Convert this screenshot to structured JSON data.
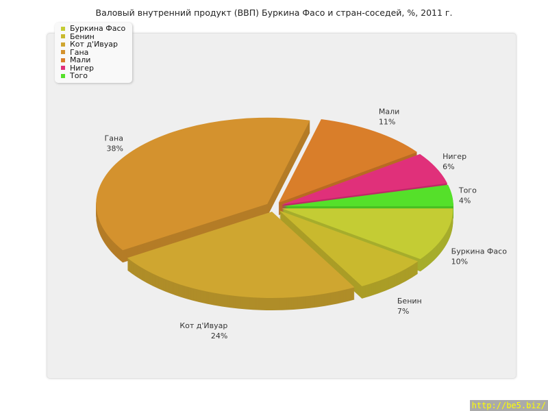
{
  "chart_data": {
    "type": "pie",
    "title": "Валовый внутренний продукт (ВВП) Буркина Фасо и стран-соседей, %, 2011 г.",
    "legend_position": "top-left",
    "slices": [
      {
        "label": "Буркина Фасо",
        "value": 10,
        "color": "#c4cc34"
      },
      {
        "label": "Бенин",
        "value": 7,
        "color": "#c9b92e"
      },
      {
        "label": "Кот д'Ивуар",
        "value": 24,
        "color": "#cfa630"
      },
      {
        "label": "Гана",
        "value": 38,
        "color": "#d4922e"
      },
      {
        "label": "Мали",
        "value": 11,
        "color": "#d97e2a"
      },
      {
        "label": "Нигер",
        "value": 6,
        "color": "#e0307a"
      },
      {
        "label": "Того",
        "value": 4,
        "color": "#55e02a"
      }
    ]
  },
  "watermark": "http://be5.biz/"
}
